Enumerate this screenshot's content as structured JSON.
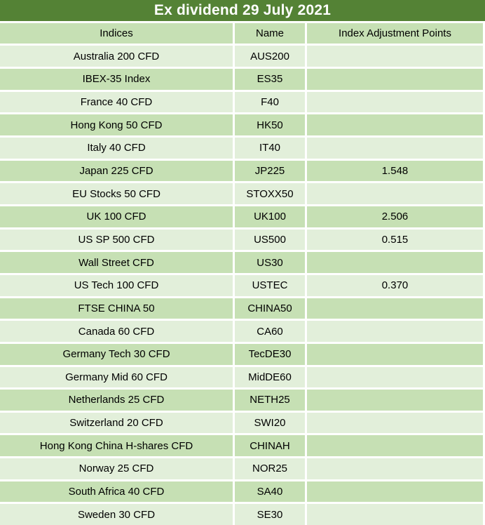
{
  "colors": {
    "title-bg": "#548235",
    "title-text": "#ffffff",
    "header-bg": "#c6e0b4",
    "row-light": "#e2efda",
    "row-medium": "#c6e0b4",
    "grid-border": "#ffffff",
    "cell-text": "#000000"
  },
  "chart_data": {
    "type": "table",
    "title": "Ex dividend 29 July 2021",
    "columns": [
      "Indices",
      "Name",
      "Index Adjustment Points"
    ],
    "rows": [
      [
        "Australia 200 CFD",
        "AUS200",
        ""
      ],
      [
        "IBEX-35 Index",
        "ES35",
        ""
      ],
      [
        "France 40 CFD",
        "F40",
        ""
      ],
      [
        "Hong Kong 50 CFD",
        "HK50",
        ""
      ],
      [
        "Italy 40 CFD",
        "IT40",
        ""
      ],
      [
        "Japan 225 CFD",
        "JP225",
        "1.548"
      ],
      [
        "EU Stocks 50 CFD",
        "STOXX50",
        ""
      ],
      [
        "UK 100 CFD",
        "UK100",
        "2.506"
      ],
      [
        "US SP 500 CFD",
        "US500",
        "0.515"
      ],
      [
        "Wall Street CFD",
        "US30",
        ""
      ],
      [
        "US Tech 100 CFD",
        "USTEC",
        "0.370"
      ],
      [
        "FTSE CHINA 50",
        "CHINA50",
        ""
      ],
      [
        "Canada 60 CFD",
        "CA60",
        ""
      ],
      [
        "Germany Tech 30 CFD",
        "TecDE30",
        ""
      ],
      [
        "Germany Mid 60 CFD",
        "MidDE60",
        ""
      ],
      [
        "Netherlands 25 CFD",
        "NETH25",
        ""
      ],
      [
        "Switzerland 20 CFD",
        "SWI20",
        ""
      ],
      [
        "Hong Kong China H-shares CFD",
        "CHINAH",
        ""
      ],
      [
        "Norway 25 CFD",
        "NOR25",
        ""
      ],
      [
        "South Africa 40 CFD",
        "SA40",
        ""
      ],
      [
        "Sweden 30 CFD",
        "SE30",
        ""
      ]
    ]
  }
}
